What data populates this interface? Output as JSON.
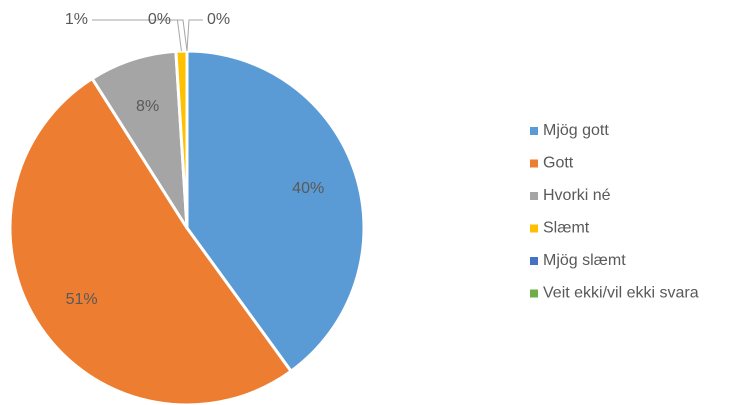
{
  "chart_data": {
    "type": "pie",
    "categories": [
      "Mjög gott",
      "Gott",
      "Hvorki né",
      "Slæmt",
      "Mjög slæmt",
      "Veit ekki/vil ekki svara"
    ],
    "values": [
      40,
      51,
      8,
      1,
      0,
      0
    ],
    "value_labels": [
      "40%",
      "51%",
      "8%",
      "1%",
      "0%",
      "0%"
    ],
    "colors": [
      "#5b9bd5",
      "#ed7d31",
      "#a5a5a5",
      "#ffc000",
      "#4472c4",
      "#70ad47"
    ],
    "legend": "right"
  }
}
